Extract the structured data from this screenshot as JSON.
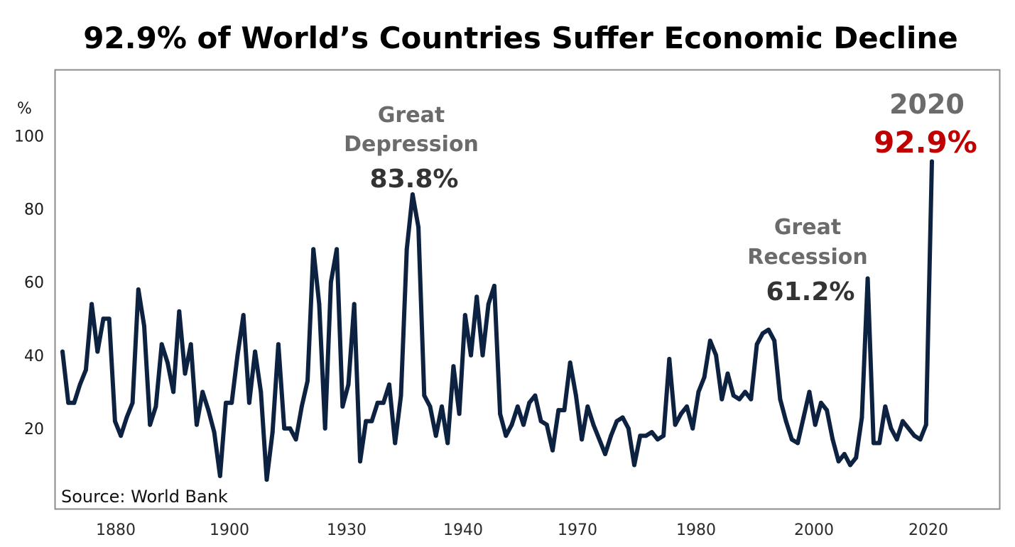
{
  "chart_data": {
    "type": "line",
    "title": "92.9% of World’s Countries Suffer Economic Decline",
    "ylabel": "%",
    "xlabel": "",
    "ylim": [
      0,
      118
    ],
    "y_ticks": [
      "20",
      "40",
      "60",
      "80",
      "100"
    ],
    "x_tick_labels": [
      "1880",
      "1900",
      "1930",
      "1940",
      "1970",
      "1980",
      "2000",
      "2020"
    ],
    "grid": false,
    "line_color": "#0d2240",
    "source": "Source: World Bank",
    "annotations": {
      "great_depression": {
        "line1": "Great",
        "line2": "Depression",
        "value": "83.8%"
      },
      "great_recession": {
        "line1": "Great",
        "line2": "Recession",
        "value": "61.2%"
      },
      "covid": {
        "year": "2020",
        "value": "92.9%"
      }
    },
    "series": [
      {
        "x": [
          1871,
          1872,
          1873,
          1874,
          1875,
          1876,
          1877,
          1878,
          1879,
          1880,
          1881,
          1882,
          1883,
          1884,
          1885,
          1886,
          1887,
          1888,
          1889,
          1890,
          1891,
          1892,
          1893,
          1894,
          1895,
          1896,
          1897,
          1898,
          1899,
          1900,
          1901,
          1902,
          1903,
          1904,
          1905,
          1906,
          1907,
          1908,
          1909,
          1910,
          1911,
          1912,
          1913,
          1914,
          1915,
          1916,
          1917,
          1918,
          1919,
          1920,
          1921,
          1922,
          1923,
          1924,
          1925,
          1926,
          1927,
          1928,
          1929,
          1930,
          1931,
          1932,
          1933,
          1934,
          1935,
          1936,
          1937,
          1938,
          1939,
          1940,
          1941,
          1942,
          1943,
          1944,
          1945,
          1946,
          1947,
          1948,
          1949,
          1950,
          1951,
          1952,
          1953,
          1954,
          1955,
          1956,
          1957,
          1958,
          1959,
          1960,
          1961,
          1962,
          1963,
          1964,
          1965,
          1966,
          1967,
          1968,
          1969,
          1970,
          1971,
          1972,
          1973,
          1974,
          1975,
          1976,
          1977,
          1978,
          1979,
          1980,
          1981,
          1982,
          1983,
          1984,
          1985,
          1986,
          1987,
          1988,
          1989,
          1990,
          1991,
          1992,
          1993,
          1994,
          1995,
          1996,
          1997,
          1998,
          1999,
          2000,
          2001,
          2002,
          2003,
          2004,
          2005,
          2006,
          2007,
          2008,
          2009,
          2010,
          2011,
          2012,
          2013,
          2014,
          2015,
          2016,
          2017,
          2018,
          2019,
          2020
        ],
        "values": [
          41,
          27,
          27,
          32,
          36,
          54,
          41,
          50,
          50,
          22,
          18,
          23,
          27,
          58,
          48,
          21,
          26,
          43,
          38,
          30,
          52,
          35,
          43,
          21,
          30,
          25,
          19,
          7,
          27,
          27,
          40,
          51,
          27,
          41,
          30,
          6,
          19,
          43,
          20,
          20,
          17,
          26,
          33,
          69,
          54,
          20,
          60,
          69,
          26,
          32,
          54,
          11,
          22,
          22,
          27,
          27,
          32,
          16,
          29,
          69,
          84,
          75,
          29,
          26,
          18,
          26,
          16,
          37,
          24,
          51,
          40,
          56,
          40,
          54,
          59,
          24,
          18,
          21,
          26,
          21,
          27,
          29,
          22,
          21,
          14,
          25,
          25,
          38,
          29,
          17,
          26,
          21,
          17,
          13,
          18,
          22,
          23,
          20,
          10,
          18,
          18,
          19,
          17,
          18,
          39,
          21,
          24,
          26,
          20,
          30,
          34,
          44,
          40,
          28,
          35,
          29,
          28,
          30,
          28,
          43,
          46,
          47,
          44,
          28,
          22,
          17,
          16,
          23,
          30,
          21,
          27,
          25,
          17,
          11,
          13,
          10,
          12,
          23,
          61,
          16,
          16,
          26,
          20,
          17,
          22,
          20,
          18,
          17,
          21,
          93
        ]
      }
    ]
  }
}
